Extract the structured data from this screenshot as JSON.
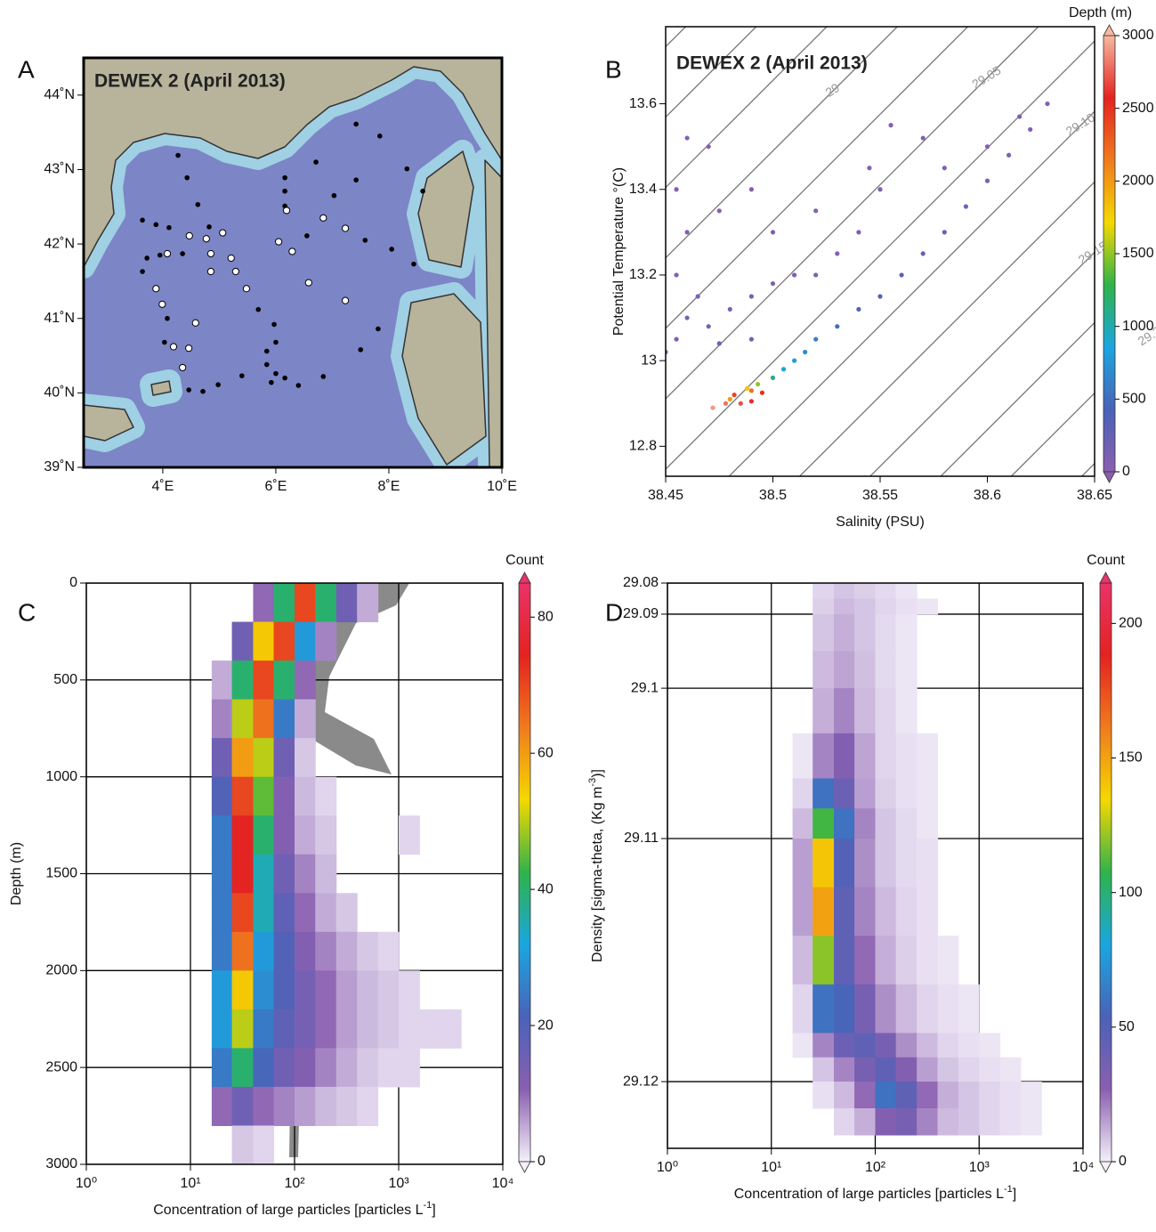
{
  "chart_data": [
    {
      "type": "map",
      "panel": "A",
      "title": "DEWEX 2  (April 2013)",
      "xlim": [
        2.6,
        10
      ],
      "ylim": [
        39,
        44.5
      ],
      "xticks": [
        {
          "value": 4,
          "label": "4˚E"
        },
        {
          "value": 6,
          "label": "6˚E"
        },
        {
          "value": 8,
          "label": "8˚E"
        },
        {
          "value": 10,
          "label": "10˚E"
        }
      ],
      "yticks": [
        {
          "value": 39,
          "label": "39˚N"
        },
        {
          "value": 40,
          "label": "40˚N"
        },
        {
          "value": 41,
          "label": "41˚N"
        },
        {
          "value": 42,
          "label": "42˚N"
        },
        {
          "value": 43,
          "label": "43˚N"
        },
        {
          "value": 44,
          "label": "44˚N"
        }
      ],
      "series": [
        {
          "color": "#000000",
          "x": [
            4.43,
            4.62,
            4.82,
            3.64,
            3.88,
            4.11,
            3.72,
            3.95,
            4.35,
            6.16,
            6.16,
            6.71,
            6.16,
            6.55,
            7.03,
            7.42,
            7.84,
            7.42,
            8.32,
            8.6,
            7.58,
            8.05,
            8.44,
            5.69,
            5.97,
            6.0,
            5.84,
            6.0,
            6.16,
            6.4,
            6.84,
            5.4,
            4.98,
            4.46,
            4.71,
            7.81,
            7.5,
            3.64,
            4.08,
            4.03,
            5.84,
            5.92,
            4.27
          ],
          "y": [
            42.89,
            42.53,
            42.23,
            42.32,
            42.26,
            42.22,
            41.81,
            41.85,
            41.87,
            42.89,
            42.71,
            43.1,
            42.51,
            42.11,
            42.65,
            42.86,
            43.45,
            43.61,
            43.01,
            42.71,
            42.05,
            41.93,
            41.73,
            41.12,
            40.92,
            40.68,
            40.38,
            40.26,
            40.2,
            40.1,
            40.22,
            40.23,
            40.11,
            40.04,
            40.02,
            40.86,
            40.58,
            41.63,
            41.0,
            40.68,
            40.56,
            40.14,
            43.19
          ]
        },
        {
          "color": "#ffffff",
          "x": [
            6.19,
            4.47,
            4.77,
            4.08,
            3.88,
            3.99,
            5.06,
            5.21,
            5.29,
            5.48,
            6.05,
            6.29,
            6.84,
            7.23,
            7.23,
            6.58,
            4.85,
            4.19,
            4.46,
            4.35,
            4.58,
            4.85
          ],
          "y": [
            42.45,
            42.11,
            42.07,
            41.87,
            41.4,
            41.19,
            42.15,
            41.81,
            41.63,
            41.4,
            42.03,
            41.9,
            42.35,
            42.21,
            41.24,
            41.48,
            41.63,
            40.62,
            40.6,
            40.34,
            40.94,
            41.87
          ]
        }
      ]
    },
    {
      "type": "scatter",
      "panel": "B",
      "title": "DEWEX 2  (April 2013)",
      "xlabel": "Salinity (PSU)",
      "ylabel": "Potential Temperature °(C)",
      "xlim": [
        38.45,
        38.65
      ],
      "ylim": [
        12.73,
        13.78
      ],
      "xticks": [
        38.45,
        38.5,
        38.55,
        38.6,
        38.65
      ],
      "yticks": [
        12.8,
        13,
        13.2,
        13.4,
        13.6
      ],
      "x": [
        38.472,
        38.478,
        38.485,
        38.49,
        38.482,
        38.49,
        38.495,
        38.48,
        38.488,
        38.493,
        38.5,
        38.505,
        38.51,
        38.515,
        38.52,
        38.53,
        38.54,
        38.55,
        38.56,
        38.57,
        38.58,
        38.59,
        38.6,
        38.61,
        38.62,
        38.628,
        38.615,
        38.6,
        38.58,
        38.57,
        38.555,
        38.455,
        38.46,
        38.47,
        38.465,
        38.48,
        38.49,
        38.5,
        38.51,
        38.455,
        38.46,
        38.47,
        38.455,
        38.475,
        38.49,
        38.5,
        38.52,
        38.53,
        38.54,
        38.55,
        38.52,
        38.545,
        38.45,
        38.49,
        38.475,
        38.46
      ],
      "y": [
        12.89,
        12.9,
        12.9,
        12.905,
        12.92,
        12.93,
        12.925,
        12.91,
        12.935,
        12.945,
        12.96,
        12.98,
        13.0,
        13.02,
        13.05,
        13.08,
        13.12,
        13.15,
        13.2,
        13.25,
        13.3,
        13.36,
        13.42,
        13.48,
        13.54,
        13.6,
        13.57,
        13.5,
        13.45,
        13.52,
        13.55,
        13.05,
        13.1,
        13.08,
        13.15,
        13.12,
        13.15,
        13.18,
        13.2,
        13.2,
        13.3,
        13.5,
        13.4,
        13.35,
        13.4,
        13.3,
        13.35,
        13.25,
        13.3,
        13.4,
        13.2,
        13.45,
        13.02,
        13.05,
        13.04,
        13.52
      ],
      "depth": [
        2900,
        2800,
        2700,
        2600,
        2400,
        2200,
        2500,
        2000,
        1800,
        1500,
        1100,
        900,
        800,
        700,
        600,
        500,
        400,
        350,
        300,
        250,
        200,
        150,
        120,
        100,
        80,
        50,
        60,
        80,
        90,
        70,
        50,
        80,
        100,
        120,
        90,
        100,
        110,
        90,
        100,
        60,
        40,
        30,
        40,
        30,
        25,
        40,
        50,
        60,
        70,
        60,
        80,
        60,
        150,
        180,
        200,
        30
      ],
      "clabel": "Depth (m)",
      "clim": [
        0,
        3000
      ],
      "cticks": [
        0,
        500,
        1000,
        1500,
        2000,
        2500,
        3000
      ],
      "colormap": [
        "#8a5fb0",
        "#4a62b8",
        "#1aa6e0",
        "#2fb34a",
        "#f5d800",
        "#f07b1e",
        "#e3231f",
        "#f7b9a0"
      ],
      "contour_levels": [
        28.925,
        28.95,
        28.975,
        29,
        29.025,
        29.05,
        29.075,
        29.1,
        29.125,
        29.15,
        29.175,
        29.2,
        29.225
      ],
      "contour_labels": [
        {
          "value": 29,
          "label": "29"
        },
        {
          "value": 29.05,
          "label": "29.05"
        },
        {
          "value": 29.1,
          "label": "29.10"
        },
        {
          "value": 29.15,
          "label": "29.15"
        },
        {
          "value": 29.2,
          "label": "29.20"
        }
      ]
    },
    {
      "type": "hist2d",
      "panel": "C",
      "xscale": "log",
      "yinvert": true,
      "xlabel": [
        "Concentration of large particles [particles L",
        "-1",
        "]"
      ],
      "ylabel": "Depth (m)",
      "xlim": [
        1,
        10000
      ],
      "ylim": [
        0,
        3000
      ],
      "xticks": [
        {
          "value": 1,
          "label": "10⁰"
        },
        {
          "value": 10,
          "label": "10¹"
        },
        {
          "value": 100,
          "label": "10²"
        },
        {
          "value": 1000,
          "label": "10³"
        },
        {
          "value": 10000,
          "label": "10⁴"
        }
      ],
      "yticks": [
        0,
        500,
        1000,
        1500,
        2000,
        2500,
        3000
      ],
      "grid": true,
      "xbins": [
        16,
        25,
        40,
        63,
        100,
        158,
        251,
        398,
        631,
        1000,
        1585,
        2512,
        3981
      ],
      "ybins": [
        0,
        200,
        400,
        600,
        800,
        1000,
        1200,
        1400,
        1600,
        1800,
        2000,
        2200,
        2400,
        2600,
        2800,
        3000
      ],
      "counts": [
        [
          null,
          null,
          10,
          40,
          70,
          40,
          15,
          5,
          null,
          null,
          null,
          null
        ],
        [
          null,
          15,
          55,
          70,
          30,
          8,
          null,
          null,
          null,
          null,
          null,
          null
        ],
        [
          5,
          40,
          70,
          40,
          10,
          null,
          null,
          null,
          null,
          null,
          null,
          null
        ],
        [
          8,
          50,
          65,
          25,
          5,
          null,
          null,
          null,
          null,
          null,
          null,
          null
        ],
        [
          15,
          60,
          50,
          15,
          3,
          null,
          null,
          null,
          null,
          null,
          null,
          null
        ],
        [
          20,
          70,
          45,
          12,
          4,
          2,
          null,
          null,
          null,
          null,
          null,
          null
        ],
        [
          25,
          75,
          40,
          12,
          5,
          3,
          null,
          null,
          null,
          2,
          null,
          null
        ],
        [
          25,
          75,
          35,
          15,
          8,
          4,
          null,
          null,
          null,
          null,
          null,
          null
        ],
        [
          25,
          70,
          35,
          18,
          10,
          5,
          3,
          null,
          null,
          null,
          null,
          null
        ],
        [
          25,
          65,
          30,
          20,
          12,
          8,
          5,
          3,
          2,
          null,
          null,
          null
        ],
        [
          30,
          55,
          28,
          20,
          14,
          10,
          6,
          4,
          3,
          2,
          null,
          null
        ],
        [
          30,
          50,
          25,
          18,
          14,
          10,
          6,
          4,
          3,
          2,
          2,
          2
        ],
        [
          25,
          40,
          22,
          15,
          12,
          8,
          5,
          3,
          2,
          2,
          null,
          null
        ],
        [
          10,
          15,
          10,
          8,
          6,
          4,
          3,
          2,
          null,
          null,
          null,
          null
        ],
        [
          null,
          3,
          2,
          null,
          null,
          null,
          null,
          null,
          null,
          null,
          null,
          null
        ]
      ],
      "clabel": "Count",
      "clim": [
        0,
        85
      ],
      "cticks": [
        0,
        20,
        40,
        60,
        80
      ],
      "colormap": [
        "#f4f0fa",
        "#8a5fb0",
        "#4a62b8",
        "#1aa6e0",
        "#2fb34a",
        "#f5d800",
        "#f07b1e",
        "#e3231f",
        "#e9336a"
      ]
    },
    {
      "type": "hist2d",
      "panel": "D",
      "xscale": "log",
      "yinvert": true,
      "yscale": "piecewise",
      "xlabel": [
        "Concentration of large particles [particles L",
        "-1",
        "]"
      ],
      "ylabel": [
        "Density [sigma-theta, (Kg m",
        "-3",
        ")]"
      ],
      "xlim": [
        1,
        10000
      ],
      "ylim": [
        29.08,
        29.1225
      ],
      "xticks": [
        {
          "value": 1,
          "label": "10⁰"
        },
        {
          "value": 10,
          "label": "10¹"
        },
        {
          "value": 100,
          "label": "10²"
        },
        {
          "value": 1000,
          "label": "10³"
        },
        {
          "value": 10000,
          "label": "10⁴"
        }
      ],
      "yticks": [
        29.08,
        29.09,
        29.1,
        29.11,
        29.12
      ],
      "grid": true,
      "xbins": [
        16,
        25,
        40,
        63,
        100,
        158,
        251,
        398,
        631,
        1000,
        1585,
        2512,
        3981
      ],
      "ybins": [
        29.08,
        29.085,
        29.09,
        29.095,
        29.1,
        29.103,
        29.106,
        29.108,
        29.11,
        29.112,
        29.114,
        29.116,
        29.118,
        29.119,
        29.12,
        29.121,
        29.122
      ],
      "counts": [
        [
          null,
          5,
          8,
          6,
          4,
          2,
          null,
          null,
          null,
          null,
          null,
          null
        ],
        [
          null,
          6,
          10,
          8,
          5,
          3,
          2,
          null,
          null,
          null,
          null,
          null
        ],
        [
          null,
          8,
          12,
          8,
          4,
          2,
          null,
          null,
          null,
          null,
          null,
          null
        ],
        [
          null,
          10,
          14,
          9,
          4,
          2,
          null,
          null,
          null,
          null,
          null,
          null
        ],
        [
          null,
          12,
          20,
          10,
          5,
          2,
          null,
          null,
          null,
          null,
          null,
          null
        ],
        [
          2,
          20,
          30,
          14,
          5,
          3,
          2,
          null,
          null,
          null,
          null,
          null
        ],
        [
          5,
          60,
          40,
          15,
          6,
          3,
          2,
          null,
          null,
          null,
          null,
          null
        ],
        [
          10,
          110,
          60,
          20,
          8,
          4,
          2,
          null,
          null,
          null,
          null,
          null
        ],
        [
          15,
          140,
          50,
          18,
          8,
          4,
          3,
          null,
          null,
          null,
          null,
          null
        ],
        [
          15,
          150,
          45,
          20,
          10,
          5,
          3,
          null,
          null,
          null,
          null,
          null
        ],
        [
          10,
          120,
          45,
          25,
          12,
          6,
          3,
          2,
          null,
          null,
          null,
          null
        ],
        [
          5,
          60,
          55,
          35,
          18,
          10,
          5,
          3,
          2,
          null,
          null,
          null
        ],
        [
          2,
          20,
          40,
          45,
          35,
          18,
          10,
          5,
          3,
          2,
          null,
          null
        ],
        [
          null,
          8,
          20,
          35,
          45,
          30,
          15,
          8,
          5,
          3,
          2,
          null
        ],
        [
          null,
          3,
          10,
          25,
          60,
          45,
          25,
          12,
          8,
          5,
          3,
          2
        ],
        [
          null,
          null,
          5,
          12,
          30,
          35,
          20,
          10,
          8,
          5,
          3,
          2
        ]
      ],
      "clabel": "Count",
      "clim": [
        0,
        215
      ],
      "cticks": [
        0,
        50,
        100,
        150,
        200
      ],
      "colormap": [
        "#f4f0fa",
        "#8a5fb0",
        "#4a62b8",
        "#1aa6e0",
        "#2fb34a",
        "#f5d800",
        "#f07b1e",
        "#e3231f",
        "#e9336a"
      ]
    }
  ]
}
